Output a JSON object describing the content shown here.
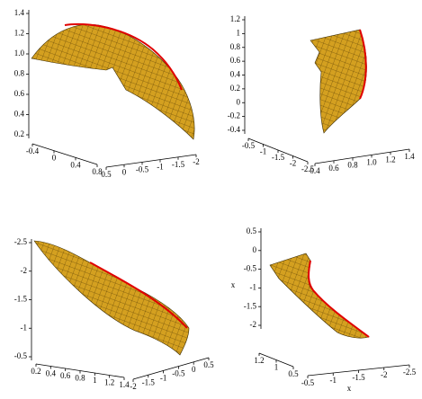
{
  "panels": [
    {
      "vertical_ticks": [
        "1.4",
        "1.2",
        "1.0",
        "0.8",
        "0.6",
        "0.4",
        "0.2"
      ],
      "axis_a_ticks": [
        "-0.4",
        "0",
        "0.4",
        "0.8"
      ],
      "axis_b_ticks": [
        "0.5",
        "0",
        "-0.5",
        "-1",
        "-1.5",
        "-2"
      ]
    },
    {
      "vertical_ticks": [
        "1.2",
        "1",
        "0.8",
        "0.6",
        "0.4",
        "0.2",
        "0",
        "-0.2",
        "-0.4"
      ],
      "axis_a_ticks": [
        "-0.5",
        "-1",
        "-1.5",
        "-2",
        "-2.5"
      ],
      "axis_b_ticks": [
        "0.4",
        "0.6",
        "0.8",
        "1.0",
        "1.2",
        "1.4"
      ]
    },
    {
      "vertical_ticks": [
        "-2.5",
        "-2",
        "-1.5",
        "-1",
        "-0.5"
      ],
      "axis_a_ticks": [
        "0.2",
        "0.4",
        "0.6",
        "0.8",
        "1",
        "1.2",
        "1.4"
      ],
      "axis_b_ticks": [
        "-2",
        "-1.5",
        "-1",
        "-0.5",
        "0",
        "0.5"
      ]
    },
    {
      "vertical_ticks": [
        "0.5",
        "0",
        "-0.5",
        "-1",
        "-1.5",
        "-2"
      ],
      "axis_a_ticks": [
        "1.2",
        "1",
        "0.5"
      ],
      "axis_b_ticks": [
        "-0.5",
        "-1",
        "-1.5",
        "-2",
        "-2.5"
      ],
      "vertical_axis_label": "x",
      "bottom_axis_label": "x"
    }
  ]
}
